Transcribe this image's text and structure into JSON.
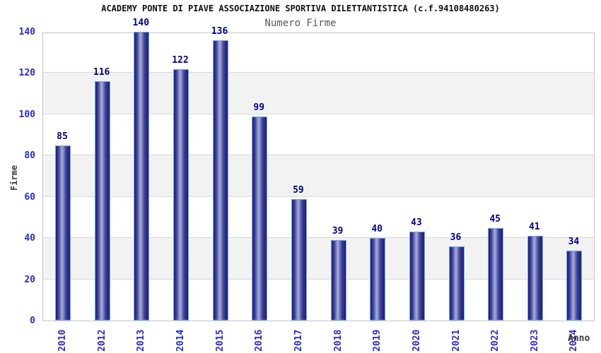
{
  "header": {
    "title": "ACADEMY PONTE DI PIAVE ASSOCIAZIONE SPORTIVA DILETTANTISTICA (c.f.94108480263)",
    "subtitle": "Numero Firme"
  },
  "chart_data": {
    "type": "bar",
    "title": "Numero Firme",
    "categories": [
      "2010",
      "2012",
      "2013",
      "2014",
      "2015",
      "2016",
      "2017",
      "2018",
      "2019",
      "2020",
      "2021",
      "2022",
      "2023",
      "2024"
    ],
    "values": [
      85,
      116,
      140,
      122,
      136,
      99,
      59,
      39,
      40,
      43,
      36,
      45,
      41,
      34
    ],
    "xlabel": "Anno",
    "ylabel": "Firme",
    "ylim": [
      0,
      140
    ],
    "ytick_step": 20,
    "yticks": [
      0,
      20,
      40,
      60,
      80,
      100,
      120,
      140
    ],
    "grid": "horizontal gridlines with alternating shaded bands",
    "legend_position": "none",
    "bar_value_labels_shown": true
  },
  "colors": {
    "title_text": "#111111",
    "subtitle_text": "#575757",
    "axis_tick_text": "#2a2ad2",
    "bar_value_text": "#00008b",
    "axis_title_text": "#3a3a3a",
    "bar_border": "#74aee6",
    "bar_dark": "#1d1d74",
    "bar_mid": "#3c3f96",
    "bar_light": "#a6aedd",
    "band_fill": "#f2f2f2",
    "gridline": "#d9d9d9",
    "plot_border": "#c6c6c6",
    "background": "#ffffff"
  }
}
